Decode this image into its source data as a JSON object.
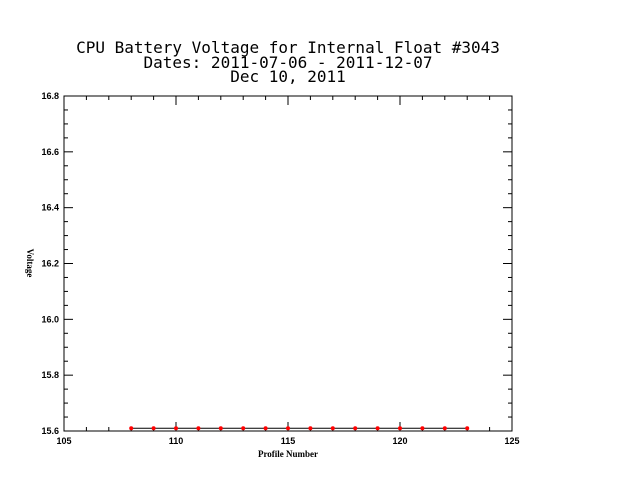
{
  "chart_data": {
    "type": "line",
    "title_lines": [
      "CPU Battery Voltage for Internal Float #3043",
      "Dates:  2011-07-06 -  2011-12-07",
      "Dec 10, 2011"
    ],
    "xlabel": "Profile Number",
    "ylabel": "Voltage",
    "xlim": [
      105,
      125
    ],
    "ylim": [
      15.6,
      16.8
    ],
    "xticks": [
      105,
      110,
      115,
      120,
      125
    ],
    "xtick_labels": [
      "105",
      "110",
      "115",
      "120",
      "125"
    ],
    "yticks": [
      15.6,
      15.8,
      16.0,
      16.2,
      16.4,
      16.6,
      16.8
    ],
    "ytick_labels": [
      "15.6",
      "15.8",
      "16.0",
      "16.2",
      "16.4",
      "16.6",
      "16.8"
    ],
    "grid": false,
    "series": [
      {
        "x": [
          108,
          109,
          110,
          111,
          112,
          113,
          114,
          115,
          116,
          117,
          118,
          119,
          120,
          121,
          122,
          123
        ],
        "y": [
          15.61,
          15.61,
          15.61,
          15.61,
          15.61,
          15.61,
          15.61,
          15.61,
          15.61,
          15.61,
          15.61,
          15.61,
          15.61,
          15.61,
          15.61,
          15.61
        ],
        "line_color": "#000000",
        "marker_color": "#ff0000"
      }
    ]
  }
}
